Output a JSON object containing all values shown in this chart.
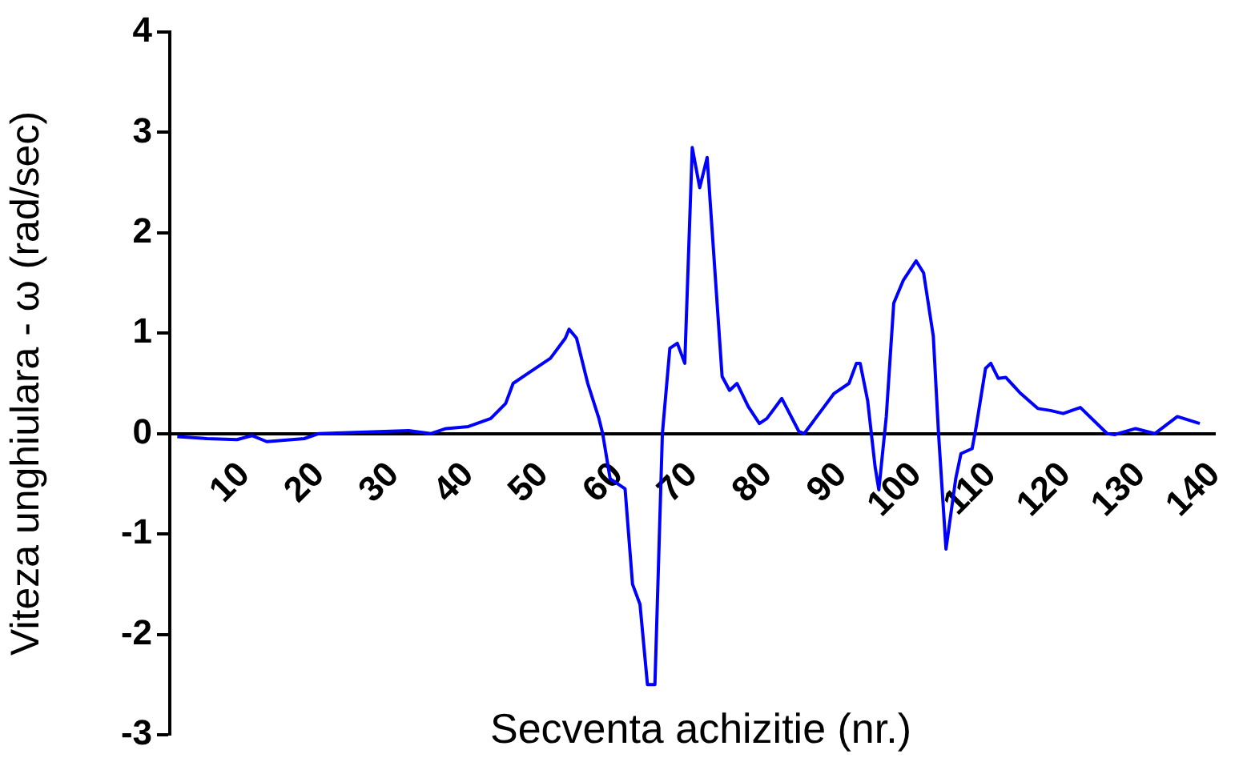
{
  "chart_data": {
    "type": "line",
    "xlabel": "Secventa achizitie (nr.)",
    "ylabel": "Viteza unghiulara - ω (rad/sec)",
    "xlim": [
      0,
      140
    ],
    "xticks": [
      10,
      20,
      30,
      40,
      50,
      60,
      70,
      80,
      90,
      100,
      110,
      120,
      130,
      140
    ],
    "ylim": [
      -3,
      4
    ],
    "yticks": [
      -3,
      -2,
      -1,
      0,
      1,
      2,
      3,
      4
    ],
    "grid": false,
    "legend": false,
    "marker": "none",
    "line_style": "solid",
    "series": [
      {
        "color": "#0000ff",
        "x": [
          1,
          5,
          9,
          11,
          13,
          18,
          20,
          28,
          32,
          35,
          37,
          40,
          43,
          45,
          46,
          48,
          51,
          53,
          53.5,
          54.5,
          56,
          57.5,
          58,
          59,
          60,
          61,
          62,
          63,
          64,
          65,
          66,
          67,
          68,
          69,
          70,
          71,
          72,
          74,
          75,
          76,
          77.5,
          79,
          80,
          82,
          84.3,
          85,
          87.5,
          89,
          91,
          92,
          92.5,
          93.5,
          94.5,
          95,
          96,
          97,
          98.3,
          100,
          101,
          102.3,
          103,
          104,
          105.3,
          106,
          107.5,
          108,
          109.3,
          110,
          111,
          112,
          114,
          116.3,
          118,
          119.7,
          122,
          125.6,
          126.6,
          129.4,
          132,
          135,
          138
        ],
        "values": [
          -0.03,
          -0.05,
          -0.06,
          -0.02,
          -0.08,
          -0.05,
          0,
          0.02,
          0.03,
          0,
          0.05,
          0.07,
          0.15,
          0.3,
          0.5,
          0.6,
          0.75,
          0.95,
          1.04,
          0.95,
          0.5,
          0.15,
          0,
          -0.45,
          -0.5,
          -0.55,
          -1.5,
          -1.7,
          -2.5,
          -2.5,
          0,
          0.85,
          0.9,
          0.7,
          2.85,
          2.45,
          2.75,
          0.57,
          0.43,
          0.5,
          0.27,
          0.1,
          0.15,
          0.35,
          0.02,
          0,
          0.25,
          0.4,
          0.5,
          0.7,
          0.7,
          0.33,
          -0.33,
          -0.56,
          0.17,
          1.3,
          1.53,
          1.72,
          1.6,
          0.97,
          0,
          -1.15,
          -0.45,
          -0.2,
          -0.15,
          0.05,
          0.65,
          0.7,
          0.55,
          0.56,
          0.4,
          0.25,
          0.23,
          0.2,
          0.26,
          0,
          -0.01,
          0.05,
          0,
          0.17,
          0.1
        ]
      }
    ]
  }
}
